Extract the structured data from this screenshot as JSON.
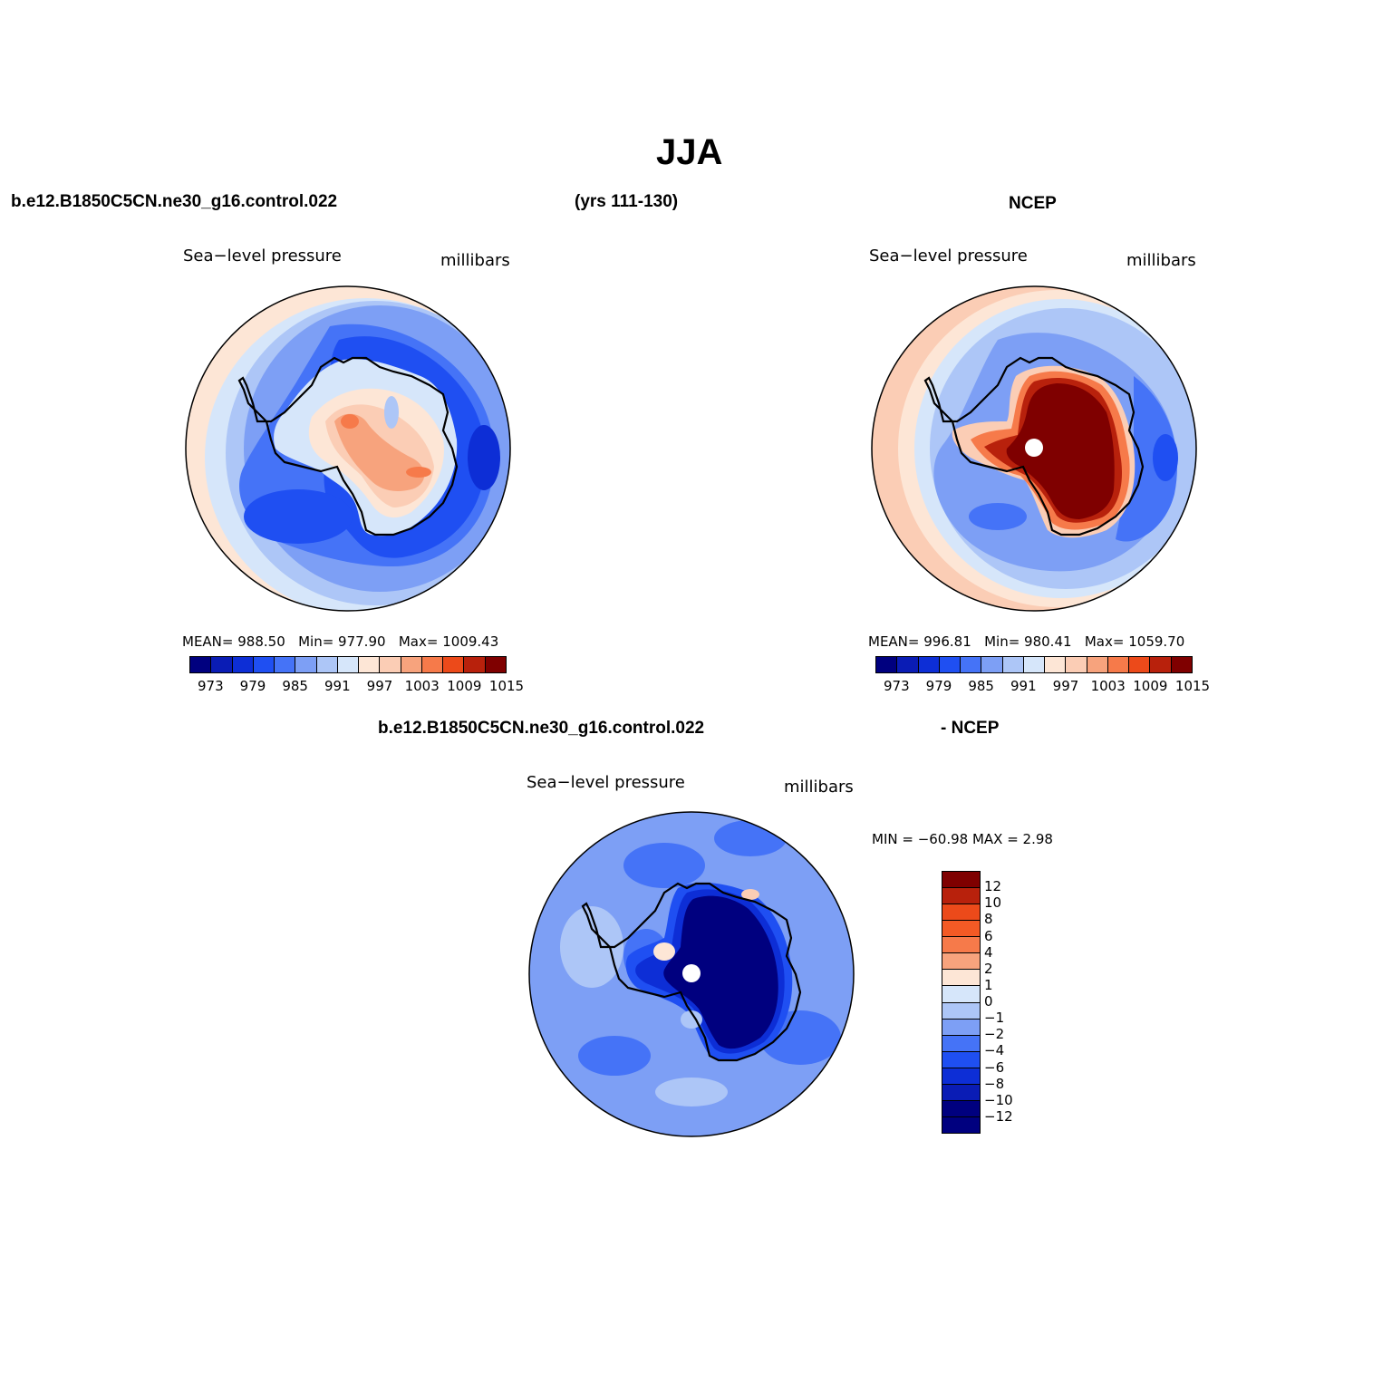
{
  "title": "JJA",
  "case_name": "b.e12.B1850C5CN.ne30_g16.control.022",
  "years": "(yrs 111-130)",
  "obs_name": "NCEP",
  "diff_case": "b.e12.B1850C5CN.ne30_g16.control.022",
  "diff_obs": "- NCEP",
  "panels": [
    {
      "var_label": "Sea−level pressure",
      "units": "millibars",
      "mean_label": "MEAN=",
      "mean": "988.50",
      "min_label": "Min=",
      "min": "977.90",
      "max_label": "Max=",
      "max": "1009.43"
    },
    {
      "var_label": "Sea−level pressure",
      "units": "millibars",
      "mean_label": "MEAN=",
      "mean": "996.81",
      "min_label": "Min=",
      "min": "980.41",
      "max_label": "Max=",
      "max": "1059.70"
    },
    {
      "var_label": "Sea−level pressure",
      "units": "millibars",
      "minmax": "MIN = −60.98  MAX =    2.98"
    }
  ],
  "abs_colorbar": {
    "colors": [
      "#00007f",
      "#0a1cb5",
      "#0d2ed6",
      "#1f4ff2",
      "#4573f7",
      "#7d9ff5",
      "#adc6f7",
      "#d6e6fa",
      "#fde6d6",
      "#fbcdb5",
      "#f7a37d",
      "#f67a4a",
      "#ec4a1a",
      "#b8210c",
      "#7f0000"
    ],
    "tick_labels": [
      "973",
      "979",
      "985",
      "991",
      "997",
      "1003",
      "1009",
      "1015"
    ]
  },
  "diff_colorbar": {
    "colors": [
      "#7f0000",
      "#b8210c",
      "#ec4a1a",
      "#f35a25",
      "#f67a4a",
      "#f7a37d",
      "#fde6d6",
      "#d6e6fa",
      "#adc6f7",
      "#7d9ff5",
      "#4573f7",
      "#1f4ff2",
      "#0d2ed6",
      "#0a1cb5",
      "#00007f",
      "#00007f"
    ],
    "tick_labels": [
      "12",
      "10",
      "8",
      "6",
      "4",
      "2",
      "1",
      "0",
      "−1",
      "−2",
      "−4",
      "−6",
      "−8",
      "−10",
      "−12"
    ]
  }
}
